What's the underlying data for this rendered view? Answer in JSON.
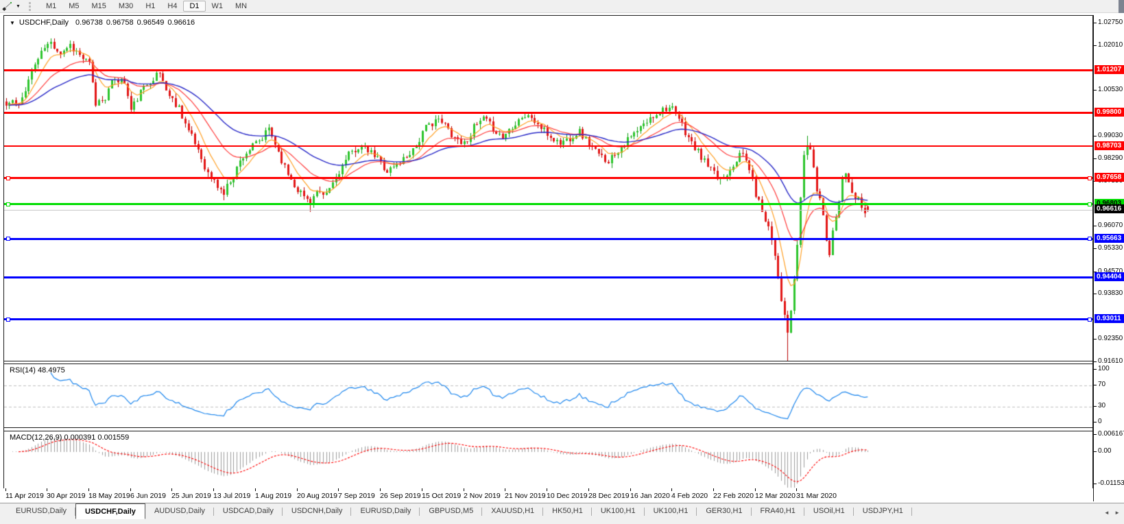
{
  "toolbar": {
    "timeframes": [
      "M1",
      "M5",
      "M15",
      "M30",
      "H1",
      "H4",
      "D1",
      "W1",
      "MN"
    ],
    "active_timeframe": "D1",
    "line_tool_icon": "trendline-draw-icon"
  },
  "chart": {
    "title": {
      "symbol_period": "USDCHF,Daily",
      "open": "0.96738",
      "high": "0.96758",
      "low": "0.96549",
      "close": "0.96616"
    }
  },
  "chart_data": {
    "type": "candlestick",
    "symbol": "USDCHF",
    "timeframe": "Daily",
    "title": "USDCHF,Daily 0.96738 0.96758 0.96549 0.96616",
    "price_axis": {
      "max": 1.03,
      "min": 0.9163,
      "ticks": [
        "1.02750",
        "1.02010",
        "1.00530",
        "0.99030",
        "0.98290",
        "0.97550",
        "0.96070",
        "0.95330",
        "0.94570",
        "0.93830",
        "0.92350",
        "0.91610"
      ]
    },
    "x_axis_dates": [
      "11 Apr 2019",
      "30 Apr 2019",
      "18 May 2019",
      "6 Jun 2019",
      "25 Jun 2019",
      "13 Jul 2019",
      "1 Aug 2019",
      "20 Aug 2019",
      "7 Sep 2019",
      "26 Sep 2019",
      "15 Oct 2019",
      "2 Nov 2019",
      "21 Nov 2019",
      "10 Dec 2019",
      "28 Dec 2019",
      "16 Jan 2020",
      "4 Feb 2020",
      "22 Feb 2020",
      "12 Mar 2020",
      "31 Mar 2020"
    ],
    "candles_per_gridline": 13,
    "candle_count": 270,
    "close_path_anchors": [
      [
        0,
        1.0005
      ],
      [
        2,
        1.002
      ],
      [
        4,
        1.0
      ],
      [
        6,
        1.0063
      ],
      [
        9,
        1.014
      ],
      [
        12,
        1.0195
      ],
      [
        14,
        1.021
      ],
      [
        17,
        1.018
      ],
      [
        20,
        1.0205
      ],
      [
        23,
        1.017
      ],
      [
        26,
        1.014
      ],
      [
        28,
        1.001
      ],
      [
        31,
        1.0035
      ],
      [
        34,
        1.0095
      ],
      [
        37,
        1.008
      ],
      [
        39,
        0.999
      ],
      [
        42,
        1.0048
      ],
      [
        45,
        1.009
      ],
      [
        48,
        1.011
      ],
      [
        51,
        1.0035
      ],
      [
        54,
        1.0
      ],
      [
        57,
        0.992
      ],
      [
        60,
        0.986
      ],
      [
        63,
        0.978
      ],
      [
        66,
        0.974
      ],
      [
        68,
        0.9715
      ],
      [
        70,
        0.976
      ],
      [
        72,
        0.98
      ],
      [
        74,
        0.984
      ],
      [
        77,
        0.987
      ],
      [
        80,
        0.9895
      ],
      [
        82,
        0.993
      ],
      [
        84,
        0.988
      ],
      [
        87,
        0.98
      ],
      [
        90,
        0.9745
      ],
      [
        93,
        0.9705
      ],
      [
        95,
        0.969
      ],
      [
        97,
        0.972
      ],
      [
        99,
        0.97
      ],
      [
        101,
        0.973
      ],
      [
        104,
        0.979
      ],
      [
        107,
        0.984
      ],
      [
        110,
        0.987
      ],
      [
        113,
        0.9855
      ],
      [
        116,
        0.983
      ],
      [
        119,
        0.979
      ],
      [
        122,
        0.981
      ],
      [
        125,
        0.984
      ],
      [
        128,
        0.9875
      ],
      [
        131,
        0.993
      ],
      [
        134,
        0.996
      ],
      [
        137,
        0.994
      ],
      [
        140,
        0.99
      ],
      [
        143,
        0.988
      ],
      [
        146,
        0.993
      ],
      [
        149,
        0.996
      ],
      [
        152,
        0.993
      ],
      [
        155,
        0.99
      ],
      [
        158,
        0.994
      ],
      [
        161,
        0.997
      ],
      [
        164,
        0.9965
      ],
      [
        167,
        0.993
      ],
      [
        170,
        0.99
      ],
      [
        173,
        0.988
      ],
      [
        176,
        0.99
      ],
      [
        179,
        0.992
      ],
      [
        182,
        0.988
      ],
      [
        185,
        0.984
      ],
      [
        188,
        0.9825
      ],
      [
        191,
        0.986
      ],
      [
        194,
        0.989
      ],
      [
        197,
        0.992
      ],
      [
        200,
        0.995
      ],
      [
        203,
        0.998
      ],
      [
        206,
        1.0
      ],
      [
        208,
        0.999
      ],
      [
        210,
        0.996
      ],
      [
        212,
        0.992
      ],
      [
        214,
        0.988
      ],
      [
        216,
        0.985
      ],
      [
        218,
        0.982
      ],
      [
        220,
        0.979
      ],
      [
        222,
        0.9765
      ],
      [
        224,
        0.977
      ],
      [
        226,
        0.98
      ],
      [
        228,
        0.983
      ],
      [
        230,
        0.9845
      ],
      [
        232,
        0.98
      ],
      [
        234,
        0.9715
      ],
      [
        236,
        0.966
      ],
      [
        238,
        0.961
      ],
      [
        240,
        0.952
      ],
      [
        241,
        0.9445
      ],
      [
        242,
        0.937
      ],
      [
        243,
        0.9305
      ],
      [
        244,
        0.9255
      ],
      [
        245,
        0.933
      ],
      [
        246,
        0.942
      ],
      [
        247,
        0.955
      ],
      [
        248,
        0.97
      ],
      [
        249,
        0.984
      ],
      [
        250,
        0.988
      ],
      [
        251,
        0.986
      ],
      [
        252,
        0.979
      ],
      [
        253,
        0.9727
      ],
      [
        254,
        0.97
      ],
      [
        255,
        0.9645
      ],
      [
        256,
        0.957
      ],
      [
        257,
        0.952
      ],
      [
        258,
        0.959
      ],
      [
        259,
        0.965
      ],
      [
        260,
        0.97
      ],
      [
        261,
        0.976
      ],
      [
        262,
        0.979
      ],
      [
        263,
        0.976
      ],
      [
        264,
        0.972
      ],
      [
        265,
        0.969
      ],
      [
        266,
        0.97
      ],
      [
        267,
        0.9665
      ],
      [
        268,
        0.9645
      ],
      [
        269,
        0.96616
      ]
    ],
    "wick_overrides": {
      "14": {
        "high": 1.0226
      },
      "68": {
        "low": 0.9693
      },
      "95": {
        "low": 0.9655
      },
      "244": {
        "low": 0.9161
      },
      "250": {
        "high": 0.9906
      },
      "257": {
        "low": 0.9505
      }
    },
    "last_candle": {
      "open": 0.96738,
      "high": 0.96758,
      "low": 0.96549,
      "close": 0.96616
    },
    "noise_amp": 0.0013,
    "wick_amp": 0.0016,
    "render_seed": 11,
    "up_color": "#2DC52D",
    "up_wick_color": "#0E9E0E",
    "down_color": "#E31616",
    "down_wick_color": "#B80000",
    "moving_averages": [
      {
        "name": "fast-ma",
        "period": 8,
        "color": "#FFA024"
      },
      {
        "name": "medium-ma",
        "period": 21,
        "color": "#FF3A3A"
      },
      {
        "name": "slow-ma",
        "period": 45,
        "color": "#2A2AC8"
      }
    ],
    "levels": [
      {
        "price": 1.01207,
        "label": "1.01207",
        "color": "#FF0000",
        "text_color": "#FFFFFF",
        "width": 3,
        "anchor_squares": false
      },
      {
        "price": 0.998,
        "label": "0.99800",
        "color": "#FF0000",
        "text_color": "#FFFFFF",
        "width": 3,
        "anchor_squares": false
      },
      {
        "price": 0.98703,
        "label": "0.98703",
        "color": "#FF0000",
        "text_color": "#FFFFFF",
        "width": 2,
        "anchor_squares": false
      },
      {
        "price": 0.97658,
        "label": "0.97658",
        "color": "#FF0000",
        "text_color": "#FFFFFF",
        "width": 3,
        "anchor_squares": true
      },
      {
        "price": 0.96803,
        "label": "0.96803",
        "color": "#00DD00",
        "text_color": "#000000",
        "width": 3,
        "anchor_squares": true
      },
      {
        "price": 0.95663,
        "label": "0.95663",
        "color": "#0000FF",
        "text_color": "#FFFFFF",
        "width": 3,
        "anchor_squares": true
      },
      {
        "price": 0.94404,
        "label": "0.94404",
        "color": "#0000FF",
        "text_color": "#FFFFFF",
        "width": 3,
        "anchor_squares": false
      },
      {
        "price": 0.93011,
        "label": "0.93011",
        "color": "#0000FF",
        "text_color": "#FFFFFF",
        "width": 3,
        "anchor_squares": true
      }
    ],
    "current_price_line": {
      "price": 0.96616,
      "label": "0.96616",
      "line_color": "#C8C8C8",
      "tag_bg": "#000000",
      "text_color": "#FFFFFF"
    },
    "rsi": {
      "title": "RSI(14) 48.4975",
      "period": 14,
      "last_value": 48.4975,
      "overbought": 70,
      "oversold": 30,
      "axis_ticks": [
        {
          "label": "100",
          "value": 100
        },
        {
          "label": "70",
          "value": 70
        },
        {
          "label": "30",
          "value": 30
        },
        {
          "label": "0",
          "value": 0
        }
      ],
      "color": "#1C86EE",
      "level_line_color": "#C0C0C0"
    },
    "macd": {
      "title": "MACD(12,26,9) 0.000391 0.001559",
      "fast": 12,
      "slow": 26,
      "signal": 9,
      "main_last": 0.000391,
      "signal_last": 0.001559,
      "axis_ticks": [
        {
          "label": "0.006167",
          "value": 0.006167
        },
        {
          "label": "0.00",
          "value": 0
        },
        {
          "label": "-0.011531",
          "value": -0.011531
        }
      ],
      "hist_color": "#9C9C9C",
      "signal_color": "#FF0000"
    }
  },
  "tabs": {
    "items": [
      "EURUSD,Daily",
      "USDCHF,Daily",
      "AUDUSD,Daily",
      "USDCAD,Daily",
      "USDCNH,Daily",
      "EURUSD,Daily",
      "GBPUSD,M5",
      "XAUUSD,H1",
      "HK50,H1",
      "UK100,H1",
      "UK100,H1",
      "GER30,H1",
      "FRA40,H1",
      "USOil,H1",
      "USDJPY,H1"
    ],
    "active_index": 1,
    "scroll_left": "◄",
    "scroll_right": "►"
  }
}
